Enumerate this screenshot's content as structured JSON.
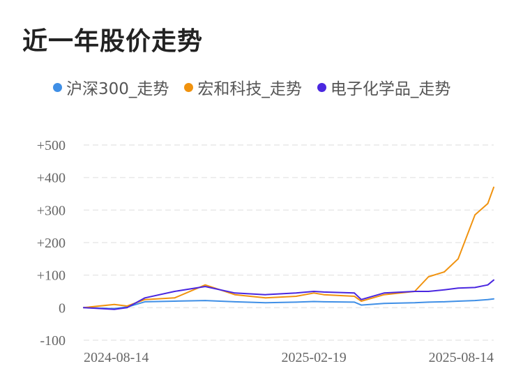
{
  "title": "近一年股价走势",
  "colors": {
    "hs300": "#3f8fe6",
    "honghe": "#f0920e",
    "dianzi": "#4a27e0",
    "grid": "#e9e9e9"
  },
  "legend": [
    {
      "label": "沪深300_走势",
      "color": "#3f8fe6",
      "icon": "circle-dot-icon"
    },
    {
      "label": "宏和科技_走势",
      "color": "#f0920e",
      "icon": "circle-dot-icon"
    },
    {
      "label": "电子化学品_走势",
      "color": "#4a27e0",
      "icon": "circle-dot-icon"
    }
  ],
  "chart_data": {
    "type": "line",
    "title": "近一年股价走势",
    "xlabel": "",
    "ylabel": "",
    "ylim": [
      -100,
      500
    ],
    "yticks": [
      500,
      400,
      300,
      200,
      100,
      0,
      -100
    ],
    "ytick_labels": [
      "+500",
      "+400",
      "+300",
      "+200",
      "+100",
      "0",
      "-100"
    ],
    "xtick_labels": [
      "2024-08-14",
      "2025-02-19",
      "2025-08-14"
    ],
    "x": [
      "2024-07-01",
      "2024-08-01",
      "2024-08-14",
      "2024-09-01",
      "2024-10-01",
      "2024-11-01",
      "2024-12-01",
      "2025-01-01",
      "2025-02-01",
      "2025-02-19",
      "2025-03-01",
      "2025-04-01",
      "2025-04-08",
      "2025-05-01",
      "2025-06-01",
      "2025-06-15",
      "2025-07-01",
      "2025-07-15",
      "2025-08-01",
      "2025-08-14",
      "2025-08-20"
    ],
    "grid": true,
    "legend_position": "top",
    "series": [
      {
        "name": "沪深300_走势",
        "color": "#3f8fe6",
        "values": [
          0,
          -3,
          2,
          18,
          20,
          22,
          18,
          15,
          17,
          19,
          18,
          17,
          8,
          13,
          15,
          17,
          18,
          20,
          22,
          25,
          27
        ]
      },
      {
        "name": "宏和科技_走势",
        "color": "#f0920e",
        "values": [
          0,
          10,
          5,
          25,
          30,
          70,
          40,
          30,
          35,
          45,
          40,
          35,
          20,
          40,
          50,
          95,
          110,
          150,
          285,
          320,
          370
        ]
      },
      {
        "name": "电子化学品_走势",
        "color": "#4a27e0",
        "values": [
          0,
          -5,
          0,
          30,
          50,
          65,
          45,
          40,
          45,
          50,
          48,
          45,
          25,
          45,
          50,
          50,
          55,
          60,
          62,
          70,
          85
        ]
      }
    ]
  }
}
